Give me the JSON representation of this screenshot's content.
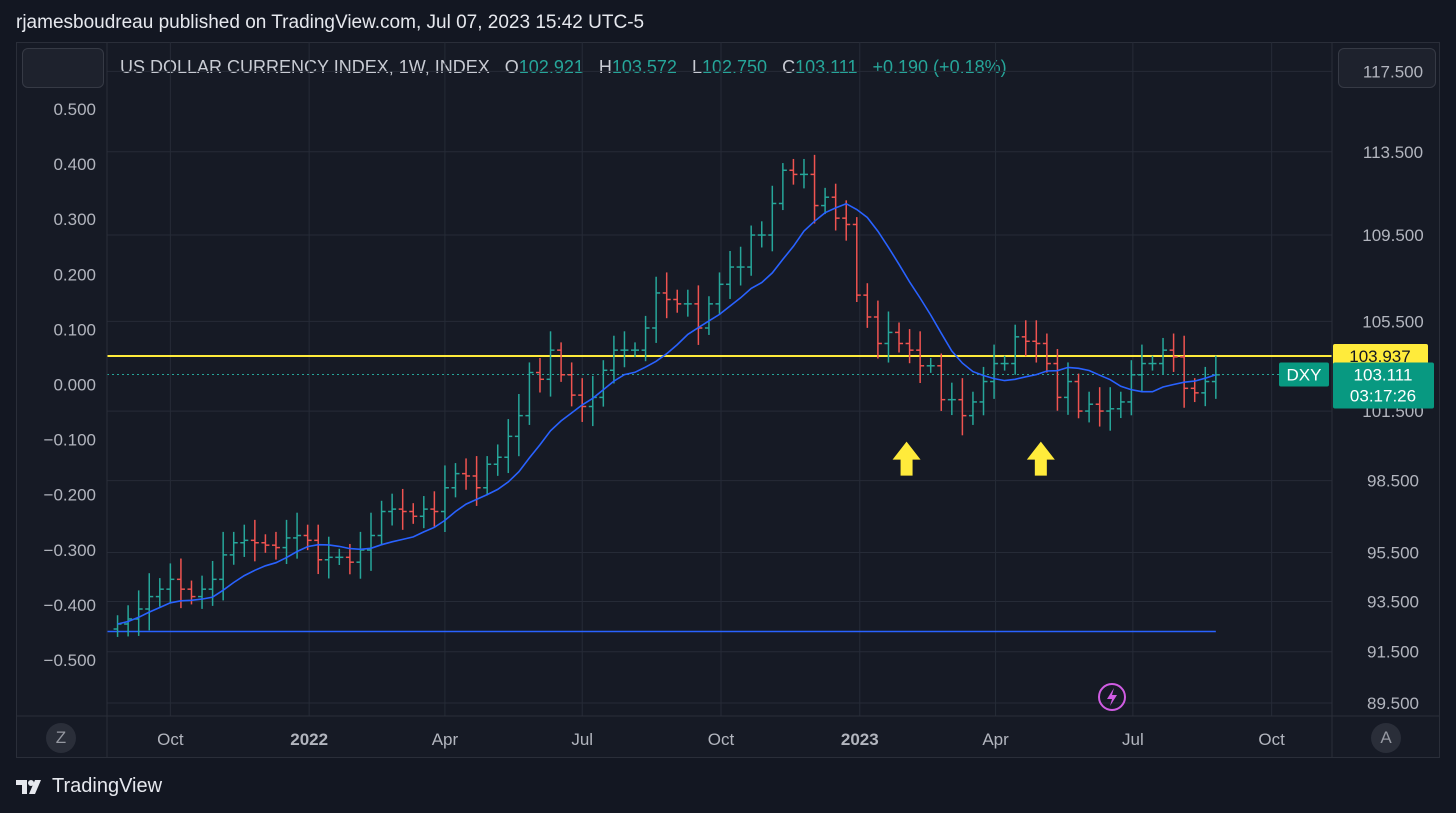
{
  "caption": "rjamesboudreau published on TradingView.com, Jul 07, 2023 15:42 UTC-5",
  "legend": {
    "symbol": "US DOLLAR CURRENCY INDEX, 1W, INDEX",
    "open_label": "O",
    "open": "102.921",
    "high_label": "H",
    "high": "103.572",
    "low_label": "L",
    "low": "102.750",
    "close_label": "C",
    "close": "103.111",
    "change": "+0.190 (+0.18%)"
  },
  "colors": {
    "up": "#26a69a",
    "down": "#ef5350",
    "ma": "#2962ff",
    "resistance": "#ffeb3b",
    "support": "#2962ff",
    "arrow": "#ffeb3b",
    "grid": "#262b37",
    "axis_text": "#b2b5be",
    "badge_bg": "#089981"
  },
  "chart_data": {
    "type": "ohlc",
    "timeframe": "1W",
    "symbol": "DXY",
    "right_axis": {
      "ticks": [
        "117.500",
        "113.500",
        "109.500",
        "105.500",
        "101.500",
        "98.500",
        "95.500",
        "93.500",
        "91.500",
        "89.500"
      ],
      "scale": "log"
    },
    "left_axis": {
      "ticks": [
        "0.500",
        "0.400",
        "0.300",
        "0.200",
        "0.100",
        "0.000",
        "−0.100",
        "−0.200",
        "−0.300",
        "−0.400",
        "−0.500"
      ]
    },
    "x_ticks": [
      {
        "label": "Oct",
        "date": "2021-10-01",
        "bold": false
      },
      {
        "label": "2022",
        "date": "2022-01-01",
        "bold": true
      },
      {
        "label": "Apr",
        "date": "2022-04-01",
        "bold": false
      },
      {
        "label": "Jul",
        "date": "2022-07-01",
        "bold": false
      },
      {
        "label": "Oct",
        "date": "2022-10-01",
        "bold": false
      },
      {
        "label": "2023",
        "date": "2023-01-01",
        "bold": true
      },
      {
        "label": "Apr",
        "date": "2023-04-01",
        "bold": false
      },
      {
        "label": "Jul",
        "date": "2023-07-01",
        "bold": false
      },
      {
        "label": "Oct",
        "date": "2023-10-01",
        "bold": false
      }
    ],
    "x_range": [
      "2021-08-20",
      "2023-11-10"
    ],
    "y_range": [
      89.0,
      119.0
    ],
    "closes": [
      92.6,
      92.8,
      93.2,
      93.7,
      94.0,
      94.4,
      94.0,
      93.7,
      94.0,
      94.4,
      95.4,
      95.9,
      96.0,
      95.9,
      95.8,
      95.7,
      96.1,
      96.2,
      96.0,
      95.2,
      95.3,
      95.3,
      95.1,
      95.6,
      96.2,
      97.2,
      97.3,
      97.2,
      97.0,
      97.3,
      97.2,
      98.2,
      98.8,
      98.7,
      98.2,
      99.2,
      99.5,
      100.4,
      101.3,
      103.2,
      102.9,
      104.2,
      103.1,
      102.2,
      101.7,
      102.1,
      103.3,
      104.2,
      104.2,
      104.2,
      105.2,
      106.8,
      106.5,
      106.3,
      106.3,
      105.2,
      106.3,
      107.2,
      108.0,
      108.0,
      109.5,
      109.5,
      111.0,
      112.6,
      112.4,
      112.4,
      110.9,
      111.3,
      110.3,
      110.0,
      106.7,
      105.7,
      104.5,
      105.0,
      104.5,
      104.2,
      103.5,
      103.5,
      102.0,
      102.0,
      101.3,
      101.9,
      102.8,
      103.6,
      103.6,
      104.8,
      104.6,
      104.5,
      103.6,
      102.1,
      102.8,
      101.5,
      101.8,
      101.5,
      101.6,
      101.9,
      103.1,
      103.6,
      103.6,
      104.2,
      103.9,
      102.5,
      102.3,
      102.8,
      103.1
    ],
    "series": [
      {
        "name": "DXY",
        "kind": "weekly OHLC bars",
        "last_close": 103.111
      },
      {
        "name": "20-week MA",
        "kind": "line"
      }
    ],
    "levels": [
      {
        "kind": "horizontal",
        "value": 103.937,
        "label": "103.937",
        "color": "resistance"
      },
      {
        "kind": "horizontal",
        "value": 92.3,
        "color": "support"
      },
      {
        "kind": "last-price",
        "value": 103.111,
        "label": "103.111",
        "sublabel": "03:17:26",
        "tag": "DXY"
      }
    ],
    "annotations": [
      {
        "kind": "arrow-up",
        "date": "2023-02-01",
        "value": 99.4
      },
      {
        "kind": "arrow-up",
        "date": "2023-05-01",
        "value": 99.4
      }
    ]
  },
  "controls": {
    "z_button": "Z",
    "a_button": "A"
  },
  "brand": "TradingView"
}
